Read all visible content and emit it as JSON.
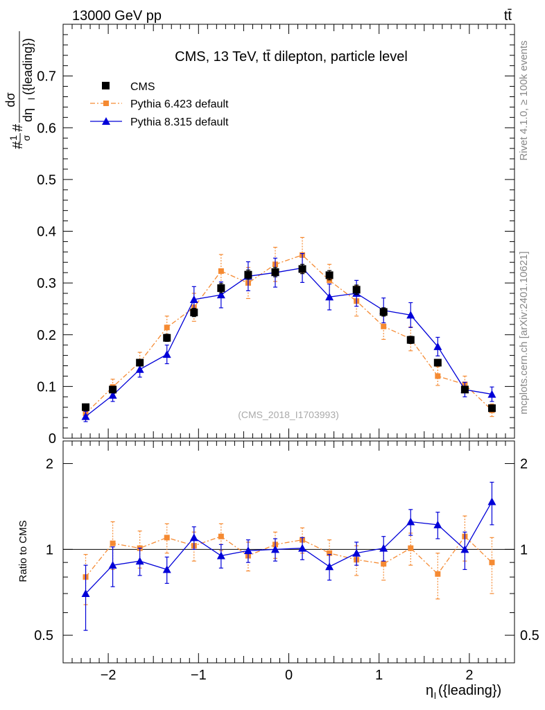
{
  "header": {
    "left": "13000 GeV pp",
    "right": "tt̄"
  },
  "side": {
    "rivet": "Rivet 4.1.0, ≥ 100k events",
    "mcplots": "mcplots.cern.ch [arXiv:2401.10621]"
  },
  "chart_data": [
    {
      "type": "scatter",
      "panel": "main",
      "title": "CMS, 13 TeV, tt̄ dilepton, particle level",
      "watermark": "(CMS_2018_I1703993)",
      "ylabel_parts": {
        "pre": "#",
        "frac_num": "1",
        "frac_den": "σ",
        "mid": "#",
        "d_num": "dσ",
        "d_den": "dη",
        "sub": "l",
        "post": "({leading})"
      },
      "xlim": [
        -2.5,
        2.5
      ],
      "ylim": [
        0,
        0.8
      ],
      "yticks": [
        0,
        0.1,
        0.2,
        0.3,
        0.4,
        0.5,
        0.6,
        0.7
      ],
      "ytick_labels": [
        "0",
        "0.1",
        "0.2",
        "0.3",
        "0.4",
        "0.5",
        "0.6",
        "0.7"
      ],
      "legend_position": "top-left",
      "x": [
        -2.25,
        -1.95,
        -1.65,
        -1.35,
        -1.05,
        -0.75,
        -0.45,
        -0.15,
        0.15,
        0.45,
        0.75,
        1.05,
        1.35,
        1.65,
        1.95,
        2.25
      ],
      "series": [
        {
          "name": "CMS",
          "color": "#000000",
          "marker": "square",
          "values": [
            0.06,
            0.094,
            0.146,
            0.194,
            0.243,
            0.29,
            0.316,
            0.321,
            0.327,
            0.315,
            0.287,
            0.244,
            0.19,
            0.146,
            0.094,
            0.058
          ],
          "errors": [
            0.004,
            0.005,
            0.006,
            0.007,
            0.008,
            0.009,
            0.009,
            0.009,
            0.009,
            0.009,
            0.009,
            0.008,
            0.007,
            0.006,
            0.005,
            0.004
          ]
        },
        {
          "name": "Pythia 6.423 default",
          "color": "#f58a32",
          "marker": "square-small",
          "line": "dash-dot",
          "values": [
            0.048,
            0.099,
            0.147,
            0.214,
            0.253,
            0.323,
            0.3,
            0.336,
            0.354,
            0.305,
            0.265,
            0.216,
            0.192,
            0.12,
            0.104,
            0.054
          ],
          "errors": [
            0.012,
            0.015,
            0.019,
            0.022,
            0.027,
            0.032,
            0.03,
            0.033,
            0.034,
            0.031,
            0.029,
            0.025,
            0.023,
            0.018,
            0.016,
            0.012
          ]
        },
        {
          "name": "Pythia 8.315 default",
          "color": "#0000d8",
          "marker": "triangle",
          "line": "solid",
          "values": [
            0.042,
            0.083,
            0.133,
            0.162,
            0.268,
            0.277,
            0.313,
            0.32,
            0.329,
            0.273,
            0.28,
            0.247,
            0.238,
            0.177,
            0.094,
            0.085
          ],
          "errors": [
            0.01,
            0.012,
            0.015,
            0.018,
            0.025,
            0.025,
            0.028,
            0.028,
            0.028,
            0.025,
            0.025,
            0.024,
            0.024,
            0.018,
            0.014,
            0.014
          ]
        }
      ]
    },
    {
      "type": "scatter",
      "panel": "ratio",
      "ylabel": "Ratio to CMS",
      "xlabel_parts": {
        "main": "η",
        "sub": "l",
        "post": "({leading})"
      },
      "xlim": [
        -2.5,
        2.5
      ],
      "ylim": [
        0.4,
        2.4
      ],
      "ylog": true,
      "xticks": [
        -2,
        -1,
        0,
        1,
        2
      ],
      "xtick_labels": [
        "−2",
        "−1",
        "0",
        "1",
        "2"
      ],
      "yticks": [
        0.5,
        1,
        2
      ],
      "ytick_labels": [
        "0.5",
        "1",
        "2"
      ],
      "x": [
        -2.25,
        -1.95,
        -1.65,
        -1.35,
        -1.05,
        -0.75,
        -0.45,
        -0.15,
        0.15,
        0.45,
        0.75,
        1.05,
        1.35,
        1.65,
        1.95,
        2.25
      ],
      "series": [
        {
          "name": "Pythia 6.423 default",
          "color": "#f58a32",
          "marker": "square-small",
          "line": "dash-dot",
          "values": [
            0.8,
            1.05,
            1.01,
            1.1,
            1.03,
            1.11,
            0.95,
            1.04,
            1.08,
            0.97,
            0.92,
            0.89,
            1.01,
            0.82,
            1.11,
            0.9
          ],
          "errors": [
            0.16,
            0.2,
            0.15,
            0.13,
            0.12,
            0.12,
            0.11,
            0.11,
            0.11,
            0.11,
            0.11,
            0.11,
            0.13,
            0.15,
            0.2,
            0.2
          ]
        },
        {
          "name": "Pythia 8.315 default",
          "color": "#0000d8",
          "marker": "triangle",
          "line": "solid",
          "values": [
            0.7,
            0.88,
            0.91,
            0.85,
            1.1,
            0.95,
            0.99,
            1.0,
            1.01,
            0.87,
            0.97,
            1.01,
            1.25,
            1.22,
            1.0,
            1.47
          ],
          "errors": [
            0.18,
            0.14,
            0.1,
            0.09,
            0.1,
            0.09,
            0.09,
            0.09,
            0.09,
            0.09,
            0.09,
            0.1,
            0.13,
            0.13,
            0.15,
            0.25
          ]
        }
      ]
    }
  ]
}
